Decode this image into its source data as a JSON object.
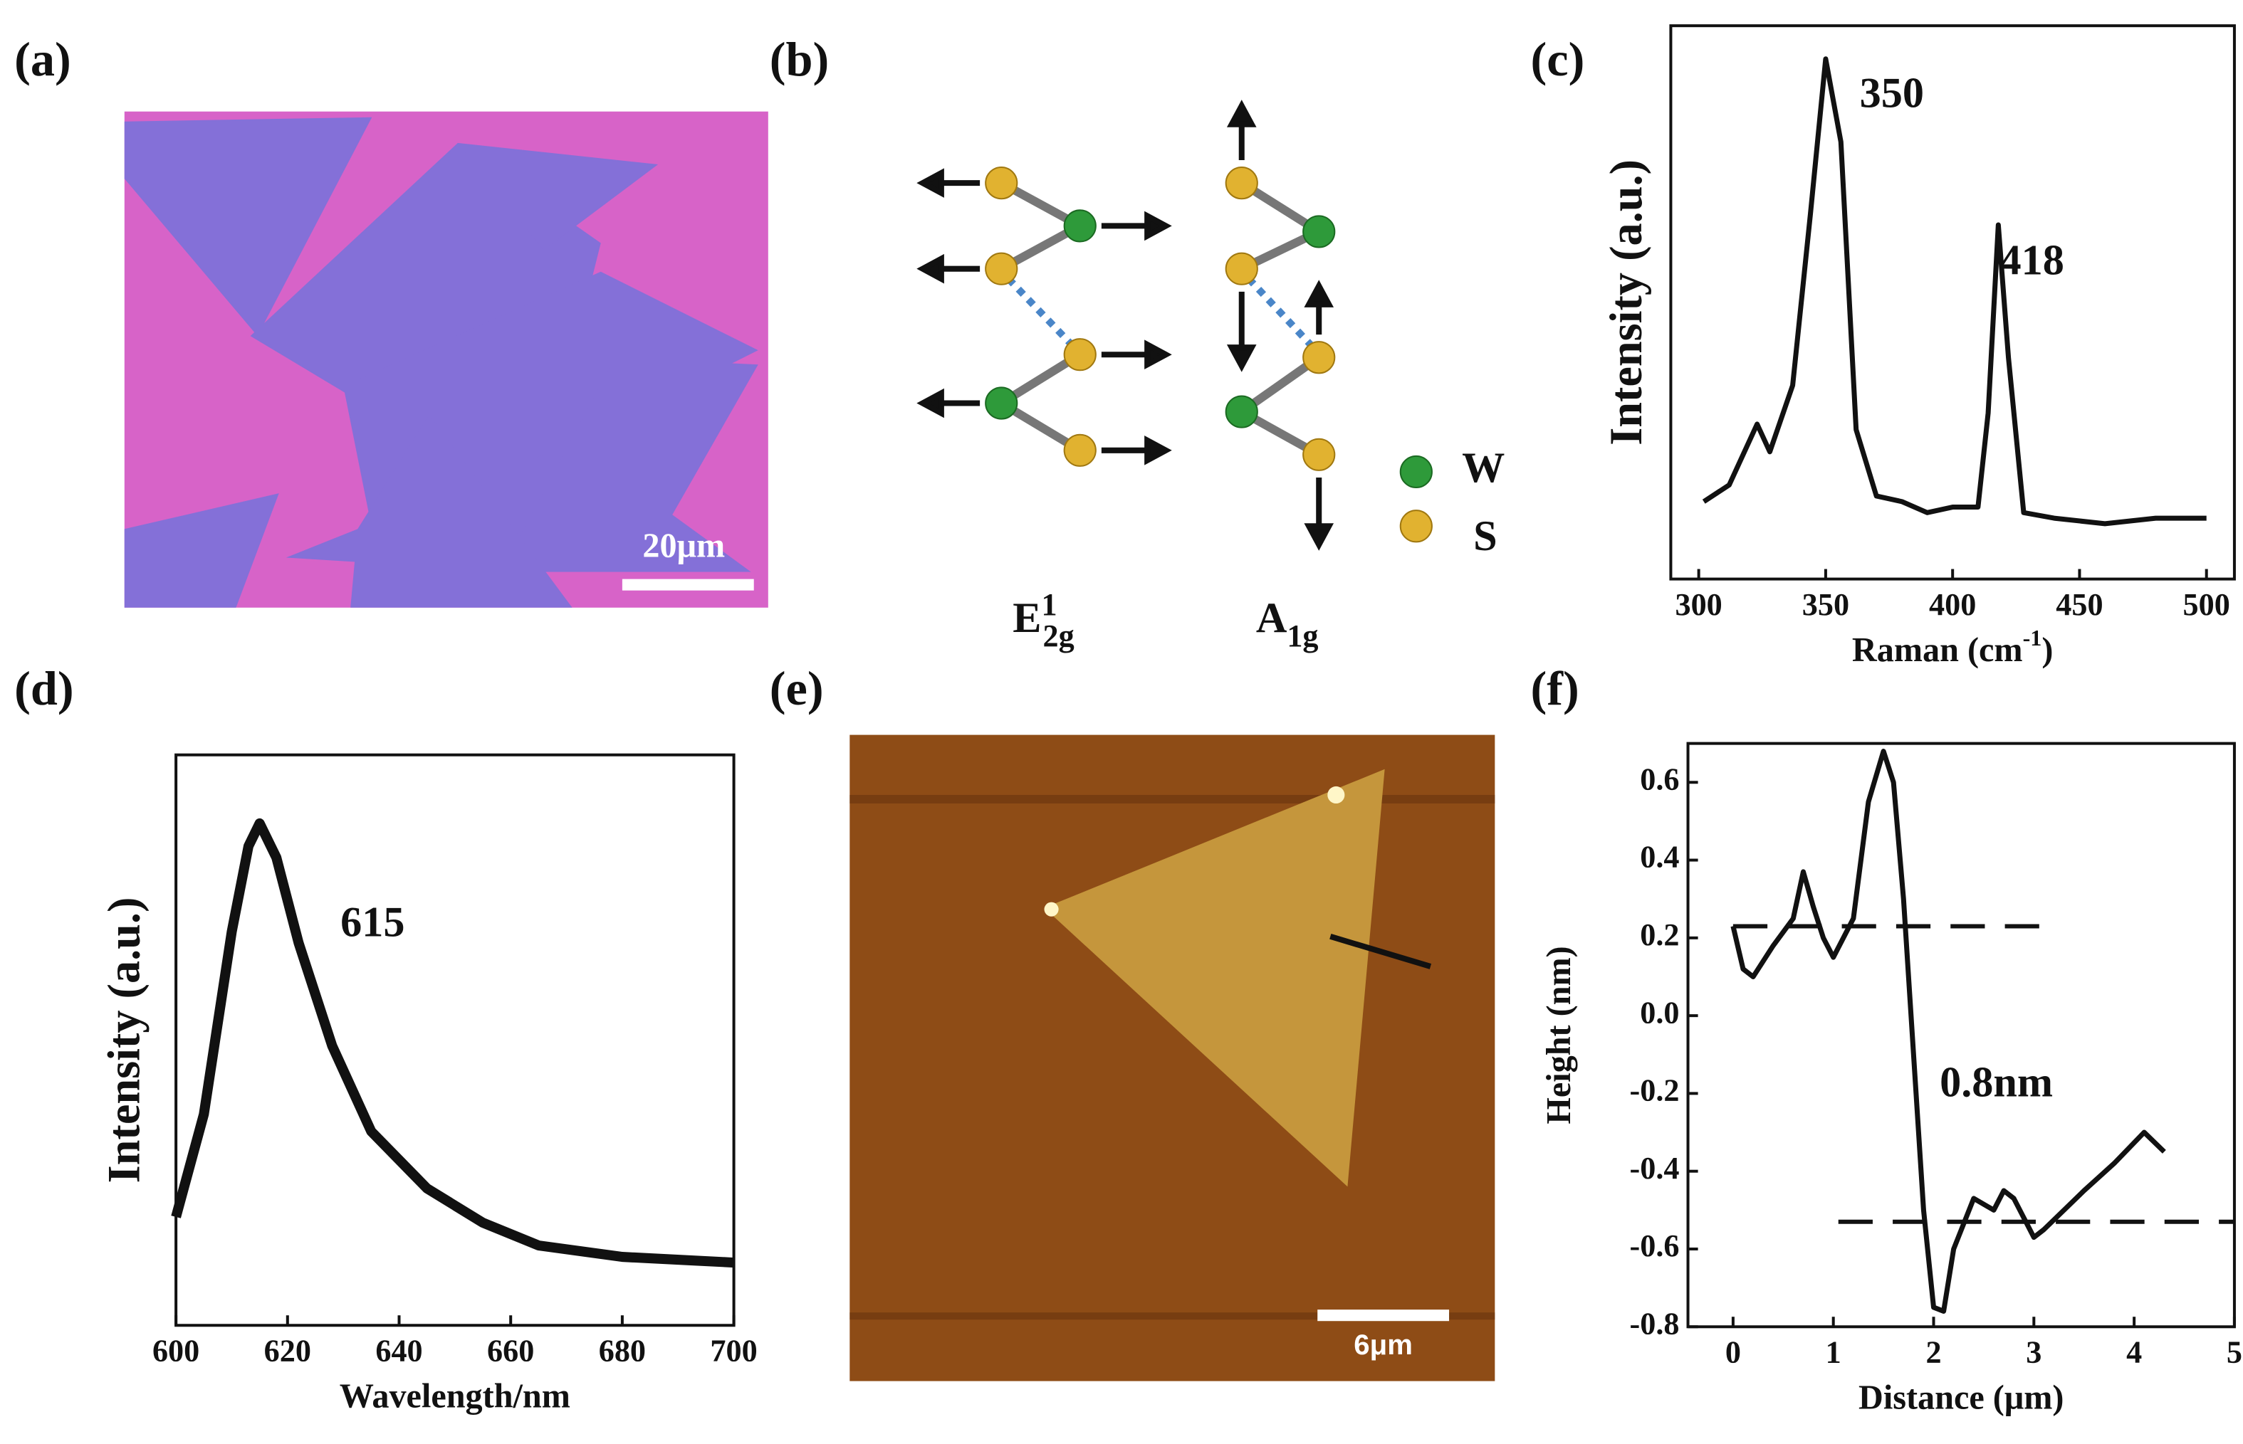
{
  "panel_labels": [
    "(a)",
    "(b)",
    "(c)",
    "(d)",
    "(e)",
    "(f)"
  ],
  "panel_a": {
    "scale_bar": "20μm"
  },
  "panel_b": {
    "mode_e": {
      "base": "E",
      "sup": "1",
      "sub": "2g"
    },
    "mode_a": {
      "base": "A",
      "sub": "1g"
    },
    "legend": [
      "W",
      "S"
    ]
  },
  "panel_e": {
    "scale_bar": "6μm"
  },
  "chart_data": [
    {
      "type": "line",
      "color": "#111111",
      "x": [
        302,
        312,
        323,
        328,
        337,
        344,
        350,
        356,
        362,
        370,
        380,
        390,
        400,
        410,
        414,
        418,
        422,
        428,
        440,
        460,
        480,
        500
      ],
      "values": [
        14,
        17,
        28,
        23,
        35,
        66,
        94,
        79,
        27,
        15,
        14,
        12,
        13,
        13,
        30,
        64,
        40,
        12,
        11,
        10,
        11,
        11
      ],
      "xlim": [
        289,
        511
      ],
      "ylim": [
        0,
        100
      ],
      "xticks": [
        300,
        350,
        400,
        450,
        500
      ],
      "xlabel": {
        "text": "Raman (cm",
        "sup": "-1",
        "tail": ")"
      },
      "ylabel": "Intensity (a.u.)",
      "annotations": [
        "350",
        "418"
      ]
    },
    {
      "type": "line",
      "color": "#111111",
      "x": [
        600,
        605,
        610,
        613,
        615,
        618,
        622,
        628,
        635,
        645,
        655,
        665,
        680,
        700
      ],
      "values": [
        19,
        37,
        69,
        84,
        88,
        82,
        67,
        49,
        34,
        24,
        18,
        14,
        12,
        11
      ],
      "xlim": [
        600,
        700
      ],
      "ylim": [
        0,
        100
      ],
      "xticks": [
        600,
        620,
        640,
        660,
        680,
        700
      ],
      "xlabel": {
        "text": "Wavelength/nm"
      },
      "ylabel": "Intensity (a.u.)",
      "annotations": [
        "615"
      ]
    },
    {
      "type": "line",
      "color": "#111111",
      "x": [
        0,
        0.1,
        0.2,
        0.4,
        0.6,
        0.7,
        0.8,
        0.9,
        1.0,
        1.2,
        1.35,
        1.5,
        1.6,
        1.7,
        1.8,
        1.9,
        2.0,
        2.1,
        2.2,
        2.4,
        2.6,
        2.7,
        2.8,
        3.0,
        3.1,
        3.3,
        3.5,
        3.8,
        4.1,
        4.3
      ],
      "values": [
        0.23,
        0.12,
        0.1,
        0.18,
        0.25,
        0.37,
        0.28,
        0.2,
        0.15,
        0.25,
        0.55,
        0.68,
        0.6,
        0.3,
        -0.1,
        -0.5,
        -0.75,
        -0.76,
        -0.6,
        -0.47,
        -0.5,
        -0.45,
        -0.47,
        -0.57,
        -0.55,
        -0.5,
        -0.45,
        -0.38,
        -0.3,
        -0.35
      ],
      "xlim": [
        -0.45,
        5
      ],
      "ylim": [
        -0.8,
        0.7
      ],
      "xticks": [
        0,
        1,
        2,
        3,
        4,
        5
      ],
      "yticks": [
        -0.8,
        -0.6,
        -0.4,
        -0.2,
        {
          "value": 0,
          "label": "0.0"
        },
        0.2,
        0.4,
        0.6
      ],
      "xlabel": {
        "text": "Distance (μm)"
      },
      "ylabel": "Height (nm)",
      "annotations": [
        "0.8nm"
      ],
      "reference_lines": [
        {
          "y": 0.23,
          "x": [
            0,
            3.2
          ]
        },
        {
          "y": -0.53,
          "x": [
            1.05,
            5
          ]
        }
      ]
    }
  ]
}
